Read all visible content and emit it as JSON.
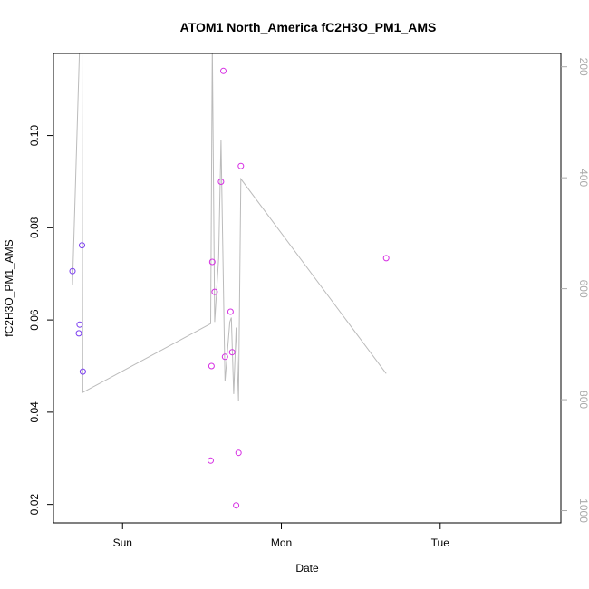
{
  "chart_data": {
    "type": "scatter",
    "title": "ATOM1 North_America fC2H3O_PM1_AMS",
    "xlabel": "Date",
    "ylabel": "fC2H3O_PM1_AMS",
    "x_ticks": [
      "Sun",
      "Mon",
      "Tue"
    ],
    "y_ticks": [
      0.02,
      0.04,
      0.06,
      0.08,
      0.1
    ],
    "y_tick_labels": [
      "0.02",
      "0.04",
      "0.06",
      "0.08",
      "0.10"
    ],
    "ylim": [
      0.016,
      0.1178
    ],
    "xlim_days": [
      -0.435,
      2.76
    ],
    "grid": false,
    "right_axis": {
      "ticks": [
        200,
        400,
        600,
        800,
        1000
      ],
      "tick_labels": [
        "200",
        "400",
        "600",
        "800",
        "1000"
      ],
      "lim": [
        1022,
        176
      ],
      "color": "#aaaaaa"
    },
    "points": [
      {
        "x": -0.315,
        "y": 0.0706,
        "color": "#7a3cf0"
      },
      {
        "x": -0.275,
        "y": 0.0571,
        "color": "#7a3cf0"
      },
      {
        "x": -0.27,
        "y": 0.059,
        "color": "#7a3cf0"
      },
      {
        "x": -0.255,
        "y": 0.0762,
        "color": "#7a3cf0"
      },
      {
        "x": -0.25,
        "y": 0.0488,
        "color": "#7a3cf0"
      },
      {
        "x": 0.555,
        "y": 0.0295,
        "color": "#d62ee3"
      },
      {
        "x": 0.56,
        "y": 0.05,
        "color": "#d62ee3"
      },
      {
        "x": 0.565,
        "y": 0.0726,
        "color": "#d62ee3"
      },
      {
        "x": 0.58,
        "y": 0.0661,
        "color": "#d62ee3"
      },
      {
        "x": 0.62,
        "y": 0.09,
        "color": "#d62ee3"
      },
      {
        "x": 0.635,
        "y": 0.114,
        "color": "#d62ee3"
      },
      {
        "x": 0.645,
        "y": 0.052,
        "color": "#d62ee3"
      },
      {
        "x": 0.68,
        "y": 0.0618,
        "color": "#d62ee3"
      },
      {
        "x": 0.69,
        "y": 0.053,
        "color": "#d62ee3"
      },
      {
        "x": 0.715,
        "y": 0.0198,
        "color": "#d62ee3"
      },
      {
        "x": 0.73,
        "y": 0.0312,
        "color": "#d62ee3"
      },
      {
        "x": 0.745,
        "y": 0.0934,
        "color": "#d62ee3"
      },
      {
        "x": 1.66,
        "y": 0.0734,
        "color": "#d62ee3"
      }
    ],
    "line_series": {
      "axis": "right",
      "color": "#bbbbbb",
      "points": [
        {
          "x": -0.315,
          "y": 594
        },
        {
          "x": -0.27,
          "y": 160
        },
        {
          "x": -0.255,
          "y": 160
        },
        {
          "x": -0.25,
          "y": 787
        },
        {
          "x": 0.555,
          "y": 663
        },
        {
          "x": 0.565,
          "y": 160
        },
        {
          "x": 0.58,
          "y": 660
        },
        {
          "x": 0.605,
          "y": 545
        },
        {
          "x": 0.62,
          "y": 332
        },
        {
          "x": 0.645,
          "y": 767
        },
        {
          "x": 0.675,
          "y": 660
        },
        {
          "x": 0.685,
          "y": 652
        },
        {
          "x": 0.7,
          "y": 790
        },
        {
          "x": 0.715,
          "y": 670
        },
        {
          "x": 0.73,
          "y": 802
        },
        {
          "x": 0.745,
          "y": 402
        },
        {
          "x": 1.66,
          "y": 753
        }
      ]
    }
  }
}
